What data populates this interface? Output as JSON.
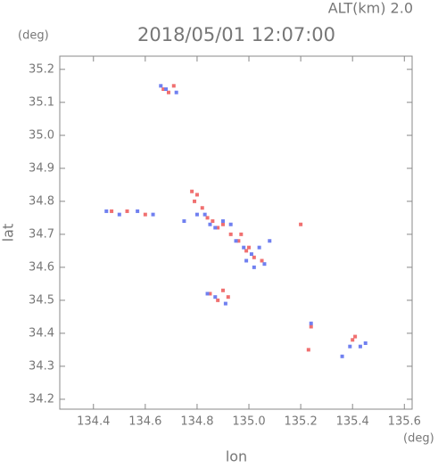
{
  "chart_data": {
    "type": "scatter",
    "title": "2018/05/01 12:07:00",
    "subtitle": "ALT(km) 2.0",
    "x_label": "lon",
    "y_label": "lat",
    "x_unit": "(deg)",
    "y_unit": "(deg)",
    "xlim": [
      134.27,
      135.63
    ],
    "ylim": [
      34.17,
      35.24
    ],
    "xticks": [
      134.4,
      134.6,
      134.8,
      {
        "value": 135,
        "label": "135.0"
      },
      135.2,
      135.4,
      135.6
    ],
    "yticks": [
      34.2,
      34.3,
      34.4,
      34.5,
      34.6,
      34.7,
      34.8,
      34.9,
      {
        "value": 35,
        "label": "35.0"
      },
      35.1,
      35.2
    ],
    "series": [
      {
        "color": "#f07070",
        "x": [
          134.67,
          134.69,
          134.71,
          134.47,
          134.53,
          134.6,
          134.78,
          134.8,
          134.82,
          134.84,
          134.86,
          134.88,
          134.9,
          134.93,
          134.96,
          134.99,
          135.02,
          135.05,
          134.85,
          134.88,
          134.9,
          134.92,
          135.2,
          135.24,
          135.23,
          135.4,
          135.41,
          134.79,
          134.97,
          135.0
        ],
        "values": [
          35.14,
          35.13,
          35.15,
          34.77,
          34.77,
          34.76,
          34.83,
          34.82,
          34.78,
          34.75,
          34.74,
          34.72,
          34.73,
          34.7,
          34.68,
          34.65,
          34.63,
          34.62,
          34.52,
          34.5,
          34.53,
          34.51,
          34.73,
          34.42,
          34.35,
          34.38,
          34.39,
          34.8,
          34.7,
          34.66
        ]
      },
      {
        "color": "#7080f0",
        "x": [
          134.66,
          134.68,
          134.72,
          134.45,
          134.5,
          134.57,
          134.63,
          134.8,
          134.83,
          134.85,
          134.87,
          134.9,
          134.93,
          134.95,
          134.98,
          135.01,
          135.04,
          135.06,
          135.08,
          134.84,
          134.87,
          134.91,
          135.24,
          135.36,
          135.39,
          135.43,
          135.45,
          134.75,
          134.99,
          135.02
        ],
        "values": [
          35.15,
          35.14,
          35.13,
          34.77,
          34.76,
          34.77,
          34.76,
          34.76,
          34.76,
          34.73,
          34.72,
          34.74,
          34.73,
          34.68,
          34.66,
          34.64,
          34.66,
          34.61,
          34.68,
          34.52,
          34.51,
          34.49,
          34.43,
          34.33,
          34.36,
          34.36,
          34.37,
          34.74,
          34.62,
          34.6
        ]
      }
    ]
  }
}
